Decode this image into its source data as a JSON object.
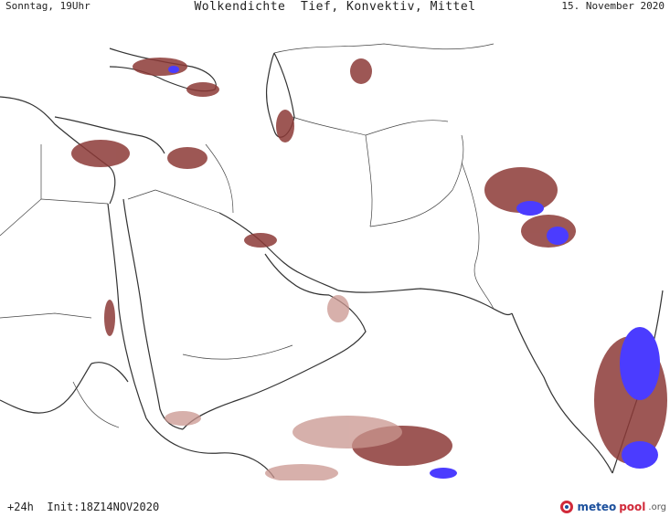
{
  "header": {
    "left": "Sonntag, 19Uhr",
    "title": "Wolkendichte  Tief, Konvektiv, Mittel",
    "right": "15. November 2020"
  },
  "footer": {
    "left": "+24h  Init:18Z14NOV2020"
  },
  "logo": {
    "part1": "meteo",
    "part2": "pool",
    "suffix": ".org"
  },
  "colors": {
    "cloud_light": "#c9968f",
    "cloud_mid": "#a95c55",
    "cloud_dark": "#8c3a37",
    "cloud_dense": "#4b3cff",
    "border": "#333333"
  }
}
